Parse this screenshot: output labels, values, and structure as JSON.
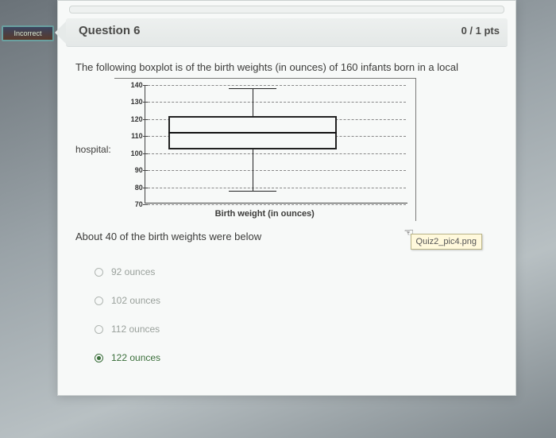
{
  "incorrect_label": "Incorrect",
  "header": {
    "title": "Question 6",
    "points": "0 / 1 pts"
  },
  "stem": {
    "line1": "The following boxplot is of the birth weights (in ounces) of 160 infants born in a local",
    "hospital_prefix": "hospital:",
    "line2": "About 40 of the birth weights were below"
  },
  "tooltip": "Quiz2_pic4.png",
  "chart": {
    "type": "boxplot",
    "xlabel": "Birth weight (in ounces)",
    "ylim": [
      70,
      140
    ],
    "ytick_step": 10,
    "yticks": [
      70,
      80,
      90,
      100,
      110,
      120,
      130,
      140
    ],
    "min": 78,
    "q1": 102,
    "median": 112,
    "q3": 122,
    "max": 138,
    "box_border": "#222222",
    "median_color": "#111111",
    "grid_color": "#888888",
    "axis_color": "#444444",
    "background": "#f7f9f8",
    "label_fontsize": 11,
    "tick_fontsize": 9
  },
  "answers": [
    {
      "label": "92 ounces",
      "selected": false
    },
    {
      "label": "102 ounces",
      "selected": false
    },
    {
      "label": "112 ounces",
      "selected": false
    },
    {
      "label": "122 ounces",
      "selected": true
    }
  ]
}
